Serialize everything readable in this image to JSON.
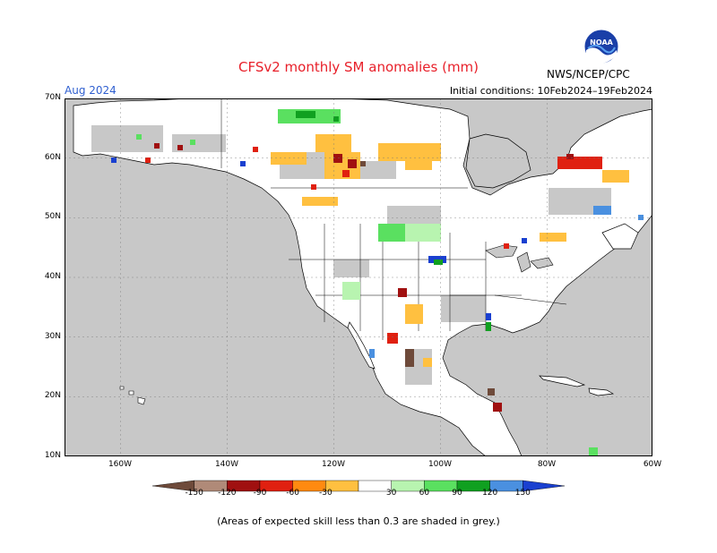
{
  "title": "CFSv2 monthly SM anomalies (mm)",
  "target_month": "Aug 2024",
  "initial_conditions": "Initial conditions: 10Feb2024–19Feb2024",
  "agency": "NWS/NCEP/CPC",
  "logo_text": "NOAA",
  "lat_labels": [
    "70N",
    "60N",
    "50N",
    "40N",
    "30N",
    "20N",
    "10N"
  ],
  "lon_labels": [
    "160W",
    "140W",
    "120W",
    "100W",
    "80W",
    "60W"
  ],
  "colorbar": {
    "ticks": [
      "-150",
      "-120",
      "-90",
      "-60",
      "-30",
      "30",
      "60",
      "90",
      "120",
      "150"
    ],
    "colors": [
      "#6e4a3a",
      "#b08a78",
      "#a01010",
      "#e02010",
      "#ff8a10",
      "#ffc040",
      "#ffffff",
      "#b8f4b0",
      "#5ae060",
      "#10a020",
      "#4a90e0",
      "#1a40d0"
    ]
  },
  "colors": {
    "skill_mask": "#c8c8c8",
    "ocean": "#c8c8c8",
    "land": "#ffffff",
    "boundaries": "#000000"
  },
  "footnote": "(Areas of expected skill less than 0.3 are shaded in grey.)"
}
